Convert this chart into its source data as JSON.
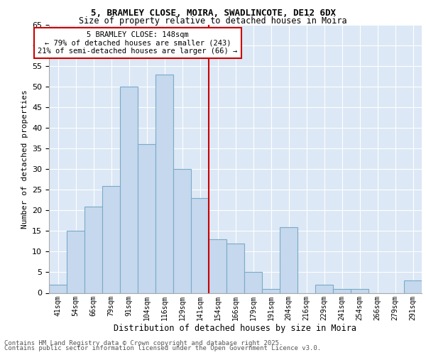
{
  "title1": "5, BRAMLEY CLOSE, MOIRA, SWADLINCOTE, DE12 6DX",
  "title2": "Size of property relative to detached houses in Moira",
  "xlabel": "Distribution of detached houses by size in Moira",
  "ylabel": "Number of detached properties",
  "categories": [
    "41sqm",
    "54sqm",
    "66sqm",
    "79sqm",
    "91sqm",
    "104sqm",
    "116sqm",
    "129sqm",
    "141sqm",
    "154sqm",
    "166sqm",
    "179sqm",
    "191sqm",
    "204sqm",
    "216sqm",
    "229sqm",
    "241sqm",
    "254sqm",
    "266sqm",
    "279sqm",
    "291sqm"
  ],
  "values": [
    2,
    15,
    21,
    26,
    50,
    36,
    53,
    30,
    23,
    13,
    12,
    5,
    1,
    16,
    0,
    2,
    1,
    1,
    0,
    0,
    3
  ],
  "bar_color": "#c5d8ed",
  "bar_edge_color": "#7aaac8",
  "vline_color": "#cc0000",
  "vline_position": 8.5,
  "annotation_text": "5 BRAMLEY CLOSE: 148sqm\n← 79% of detached houses are smaller (243)\n21% of semi-detached houses are larger (66) →",
  "annotation_box_color": "#ffffff",
  "annotation_box_edge": "#cc0000",
  "footer1": "Contains HM Land Registry data © Crown copyright and database right 2025.",
  "footer2": "Contains public sector information licensed under the Open Government Licence v3.0.",
  "ylim": [
    0,
    65
  ],
  "yticks": [
    0,
    5,
    10,
    15,
    20,
    25,
    30,
    35,
    40,
    45,
    50,
    55,
    60,
    65
  ],
  "bg_color": "#dce8f5",
  "grid_color": "#ffffff",
  "ann_text_fontsize": 7.5
}
